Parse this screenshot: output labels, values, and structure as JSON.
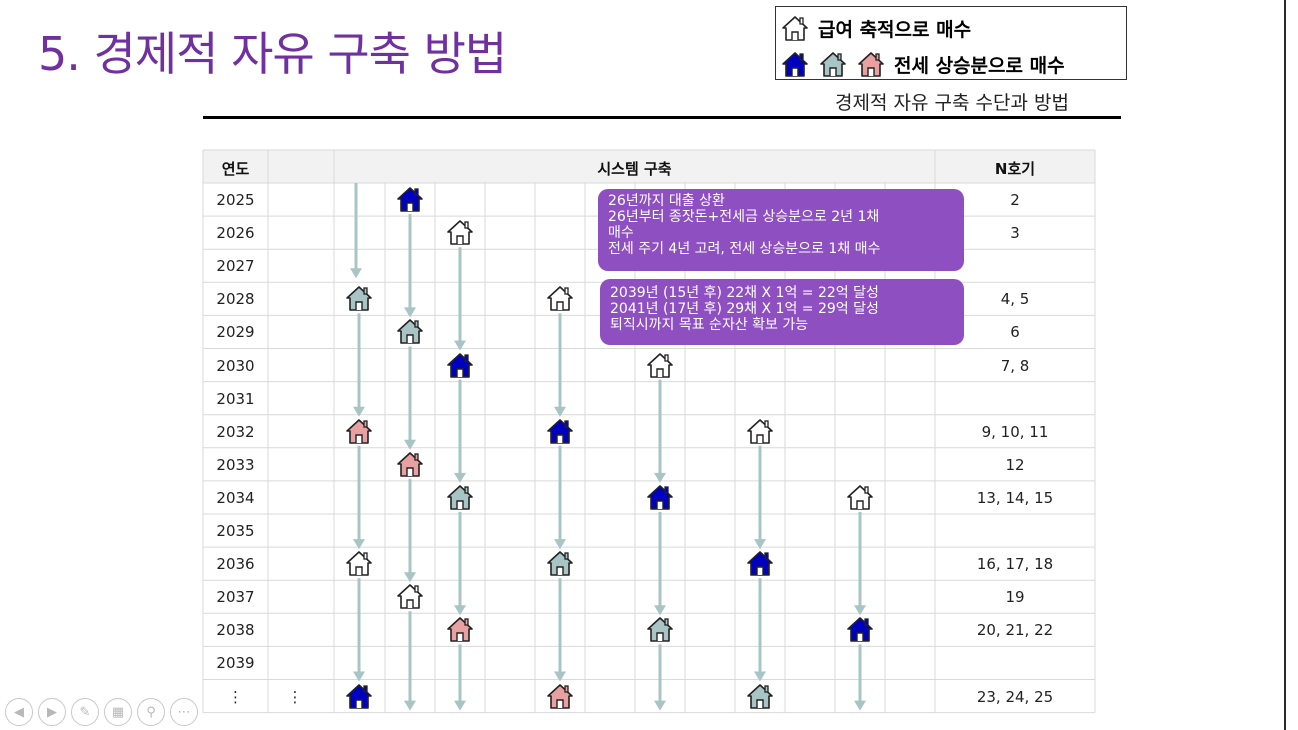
{
  "slide": {
    "title": "5. 경제적 자유 구축 방법",
    "subtitle": "경제적 자유 구축 수단과 방법",
    "legend": {
      "row1_label": "급여 축적으로 매수",
      "row2_label": "전세 상승분으로 매수"
    }
  },
  "table": {
    "headers": {
      "year": "연도",
      "system": "시스템 구축",
      "n": "N호기"
    },
    "rows": [
      {
        "year": "2025",
        "n": "2"
      },
      {
        "year": "2026",
        "n": "3"
      },
      {
        "year": "2027",
        "n": ""
      },
      {
        "year": "2028",
        "n": "4, 5"
      },
      {
        "year": "2029",
        "n": "6"
      },
      {
        "year": "2030",
        "n": "7, 8"
      },
      {
        "year": "2031",
        "n": ""
      },
      {
        "year": "2032",
        "n": "9, 10, 11"
      },
      {
        "year": "2033",
        "n": "12"
      },
      {
        "year": "2034",
        "n": "13, 14, 15"
      },
      {
        "year": "2035",
        "n": ""
      },
      {
        "year": "2036",
        "n": "16, 17, 18"
      },
      {
        "year": "2037",
        "n": "19"
      },
      {
        "year": "2038",
        "n": "20, 21, 22"
      },
      {
        "year": "2039",
        "n": ""
      },
      {
        "year": "⋮",
        "n": "23, 24, 25",
        "extra": "⋮"
      }
    ]
  },
  "callouts": {
    "first": [
      "26년까지 대출 상환",
      "26년부터 종잣돈+전세금 상승분으로 2년 1채",
      "매수",
      "전세 주기 4년 고려, 전세 상승분으로 1채 매수"
    ],
    "second": [
      "2039년 (15년 후) 22채 X 1억 = 22억 달성",
      "2041년 (17년 후) 29채 X 1억 = 29억 달성",
      "퇴직시까지 목표 순자산 확보 가능"
    ]
  },
  "colors": {
    "title": "#7030a0",
    "callout": "#8e4fc0",
    "arrow": "#a9c4c4",
    "house_outline": "#ffffff",
    "house_blue": "#0000c0",
    "house_gray": "#a9c4c4",
    "house_pink": "#e8a0a0"
  },
  "houses": [
    {
      "row": 0,
      "col": 1,
      "kind": "blue"
    },
    {
      "row": 1,
      "col": 2,
      "kind": "outline"
    },
    {
      "row": 3,
      "col": 0,
      "kind": "gray"
    },
    {
      "row": 3,
      "col": 4,
      "kind": "outline"
    },
    {
      "row": 4,
      "col": 1,
      "kind": "gray"
    },
    {
      "row": 5,
      "col": 2,
      "kind": "blue"
    },
    {
      "row": 5,
      "col": 6,
      "kind": "outline"
    },
    {
      "row": 7,
      "col": 0,
      "kind": "pink"
    },
    {
      "row": 7,
      "col": 4,
      "kind": "blue"
    },
    {
      "row": 7,
      "col": 8,
      "kind": "outline"
    },
    {
      "row": 8,
      "col": 1,
      "kind": "pink"
    },
    {
      "row": 9,
      "col": 2,
      "kind": "gray"
    },
    {
      "row": 9,
      "col": 6,
      "kind": "blue"
    },
    {
      "row": 9,
      "col": 10,
      "kind": "outline"
    },
    {
      "row": 11,
      "col": 0,
      "kind": "outline"
    },
    {
      "row": 11,
      "col": 4,
      "kind": "gray"
    },
    {
      "row": 11,
      "col": 8,
      "kind": "blue"
    },
    {
      "row": 12,
      "col": 1,
      "kind": "outline"
    },
    {
      "row": 13,
      "col": 2,
      "kind": "pink"
    },
    {
      "row": 13,
      "col": 6,
      "kind": "gray"
    },
    {
      "row": 13,
      "col": 10,
      "kind": "blue"
    },
    {
      "row": 15,
      "col": 0,
      "kind": "blue"
    },
    {
      "row": 15,
      "col": 4,
      "kind": "pink"
    },
    {
      "row": 15,
      "col": 8,
      "kind": "gray"
    }
  ],
  "nav_icons": [
    "prev-icon",
    "next-icon",
    "pen-icon",
    "slides-icon",
    "zoom-icon",
    "more-icon"
  ]
}
